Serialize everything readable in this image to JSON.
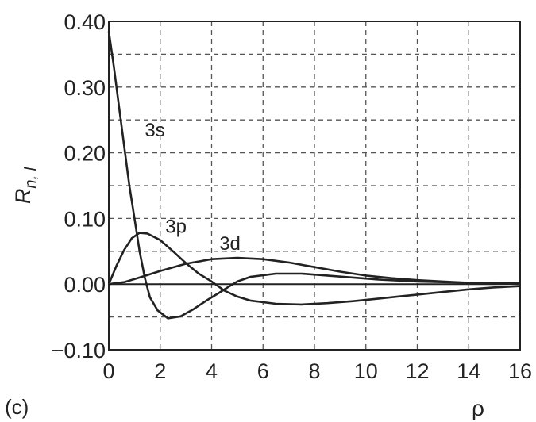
{
  "chart_data": {
    "type": "line",
    "panel_label": "(c)",
    "xlabel": "ρ",
    "ylabel": "R",
    "ylabel_sub": "n, l",
    "xlim": [
      0,
      16
    ],
    "ylim": [
      -0.1,
      0.4
    ],
    "x_ticks": [
      "0",
      "2",
      "4",
      "6",
      "8",
      "10",
      "12",
      "14",
      "16"
    ],
    "y_ticks": [
      "0.40",
      "0.30",
      "0.20",
      "0.10",
      "0.00",
      "−0.10"
    ],
    "y_tick_values": [
      0.4,
      0.3,
      0.2,
      0.1,
      0.0,
      -0.1
    ],
    "x_tick_values": [
      0,
      2,
      4,
      6,
      8,
      10,
      12,
      14,
      16
    ],
    "grid": true,
    "series": [
      {
        "name": "3s",
        "label_at": [
          1.4,
          0.225
        ],
        "points": [
          [
            0,
            0.385
          ],
          [
            0.2,
            0.33
          ],
          [
            0.4,
            0.27
          ],
          [
            0.6,
            0.21
          ],
          [
            0.8,
            0.15
          ],
          [
            1.0,
            0.1
          ],
          [
            1.2,
            0.05
          ],
          [
            1.4,
            0.01
          ],
          [
            1.6,
            -0.02
          ],
          [
            1.9,
            -0.04
          ],
          [
            2.3,
            -0.052
          ],
          [
            2.8,
            -0.049
          ],
          [
            3.3,
            -0.038
          ],
          [
            3.8,
            -0.025
          ],
          [
            4.3,
            -0.013
          ],
          [
            4.7,
            -0.003
          ],
          [
            5.0,
            0.004
          ],
          [
            5.5,
            0.011
          ],
          [
            6.5,
            0.016
          ],
          [
            7.5,
            0.016
          ],
          [
            8.5,
            0.013
          ],
          [
            9.5,
            0.01
          ],
          [
            10.5,
            0.007
          ],
          [
            12,
            0.004
          ],
          [
            14,
            0.002
          ],
          [
            16,
            0.001
          ]
        ]
      },
      {
        "name": "3p",
        "label_at": [
          2.2,
          0.078
        ],
        "points": [
          [
            0,
            0
          ],
          [
            0.3,
            0.028
          ],
          [
            0.6,
            0.052
          ],
          [
            0.9,
            0.07
          ],
          [
            1.2,
            0.078
          ],
          [
            1.5,
            0.077
          ],
          [
            2.0,
            0.067
          ],
          [
            2.5,
            0.05
          ],
          [
            3.0,
            0.032
          ],
          [
            3.5,
            0.016
          ],
          [
            4.0,
            0.004
          ],
          [
            4.5,
            -0.01
          ],
          [
            5.0,
            -0.019
          ],
          [
            5.5,
            -0.025
          ],
          [
            6.5,
            -0.03
          ],
          [
            7.5,
            -0.031
          ],
          [
            8.5,
            -0.029
          ],
          [
            9.5,
            -0.026
          ],
          [
            10.5,
            -0.022
          ],
          [
            12,
            -0.016
          ],
          [
            13,
            -0.012
          ],
          [
            14,
            -0.008
          ],
          [
            15,
            -0.005
          ],
          [
            16,
            -0.003
          ]
        ]
      },
      {
        "name": "3d",
        "label_at": [
          4.3,
          0.052
        ],
        "points": [
          [
            0,
            0
          ],
          [
            0.6,
            0.003
          ],
          [
            1.2,
            0.01
          ],
          [
            2.0,
            0.02
          ],
          [
            3.0,
            0.031
          ],
          [
            4.0,
            0.038
          ],
          [
            5.0,
            0.04
          ],
          [
            6.0,
            0.038
          ],
          [
            7.0,
            0.033
          ],
          [
            8.0,
            0.026
          ],
          [
            9.0,
            0.019
          ],
          [
            10,
            0.013
          ],
          [
            11,
            0.009
          ],
          [
            12,
            0.006
          ],
          [
            13,
            0.004
          ],
          [
            14,
            0.002
          ],
          [
            16,
            0.001
          ]
        ]
      }
    ]
  }
}
